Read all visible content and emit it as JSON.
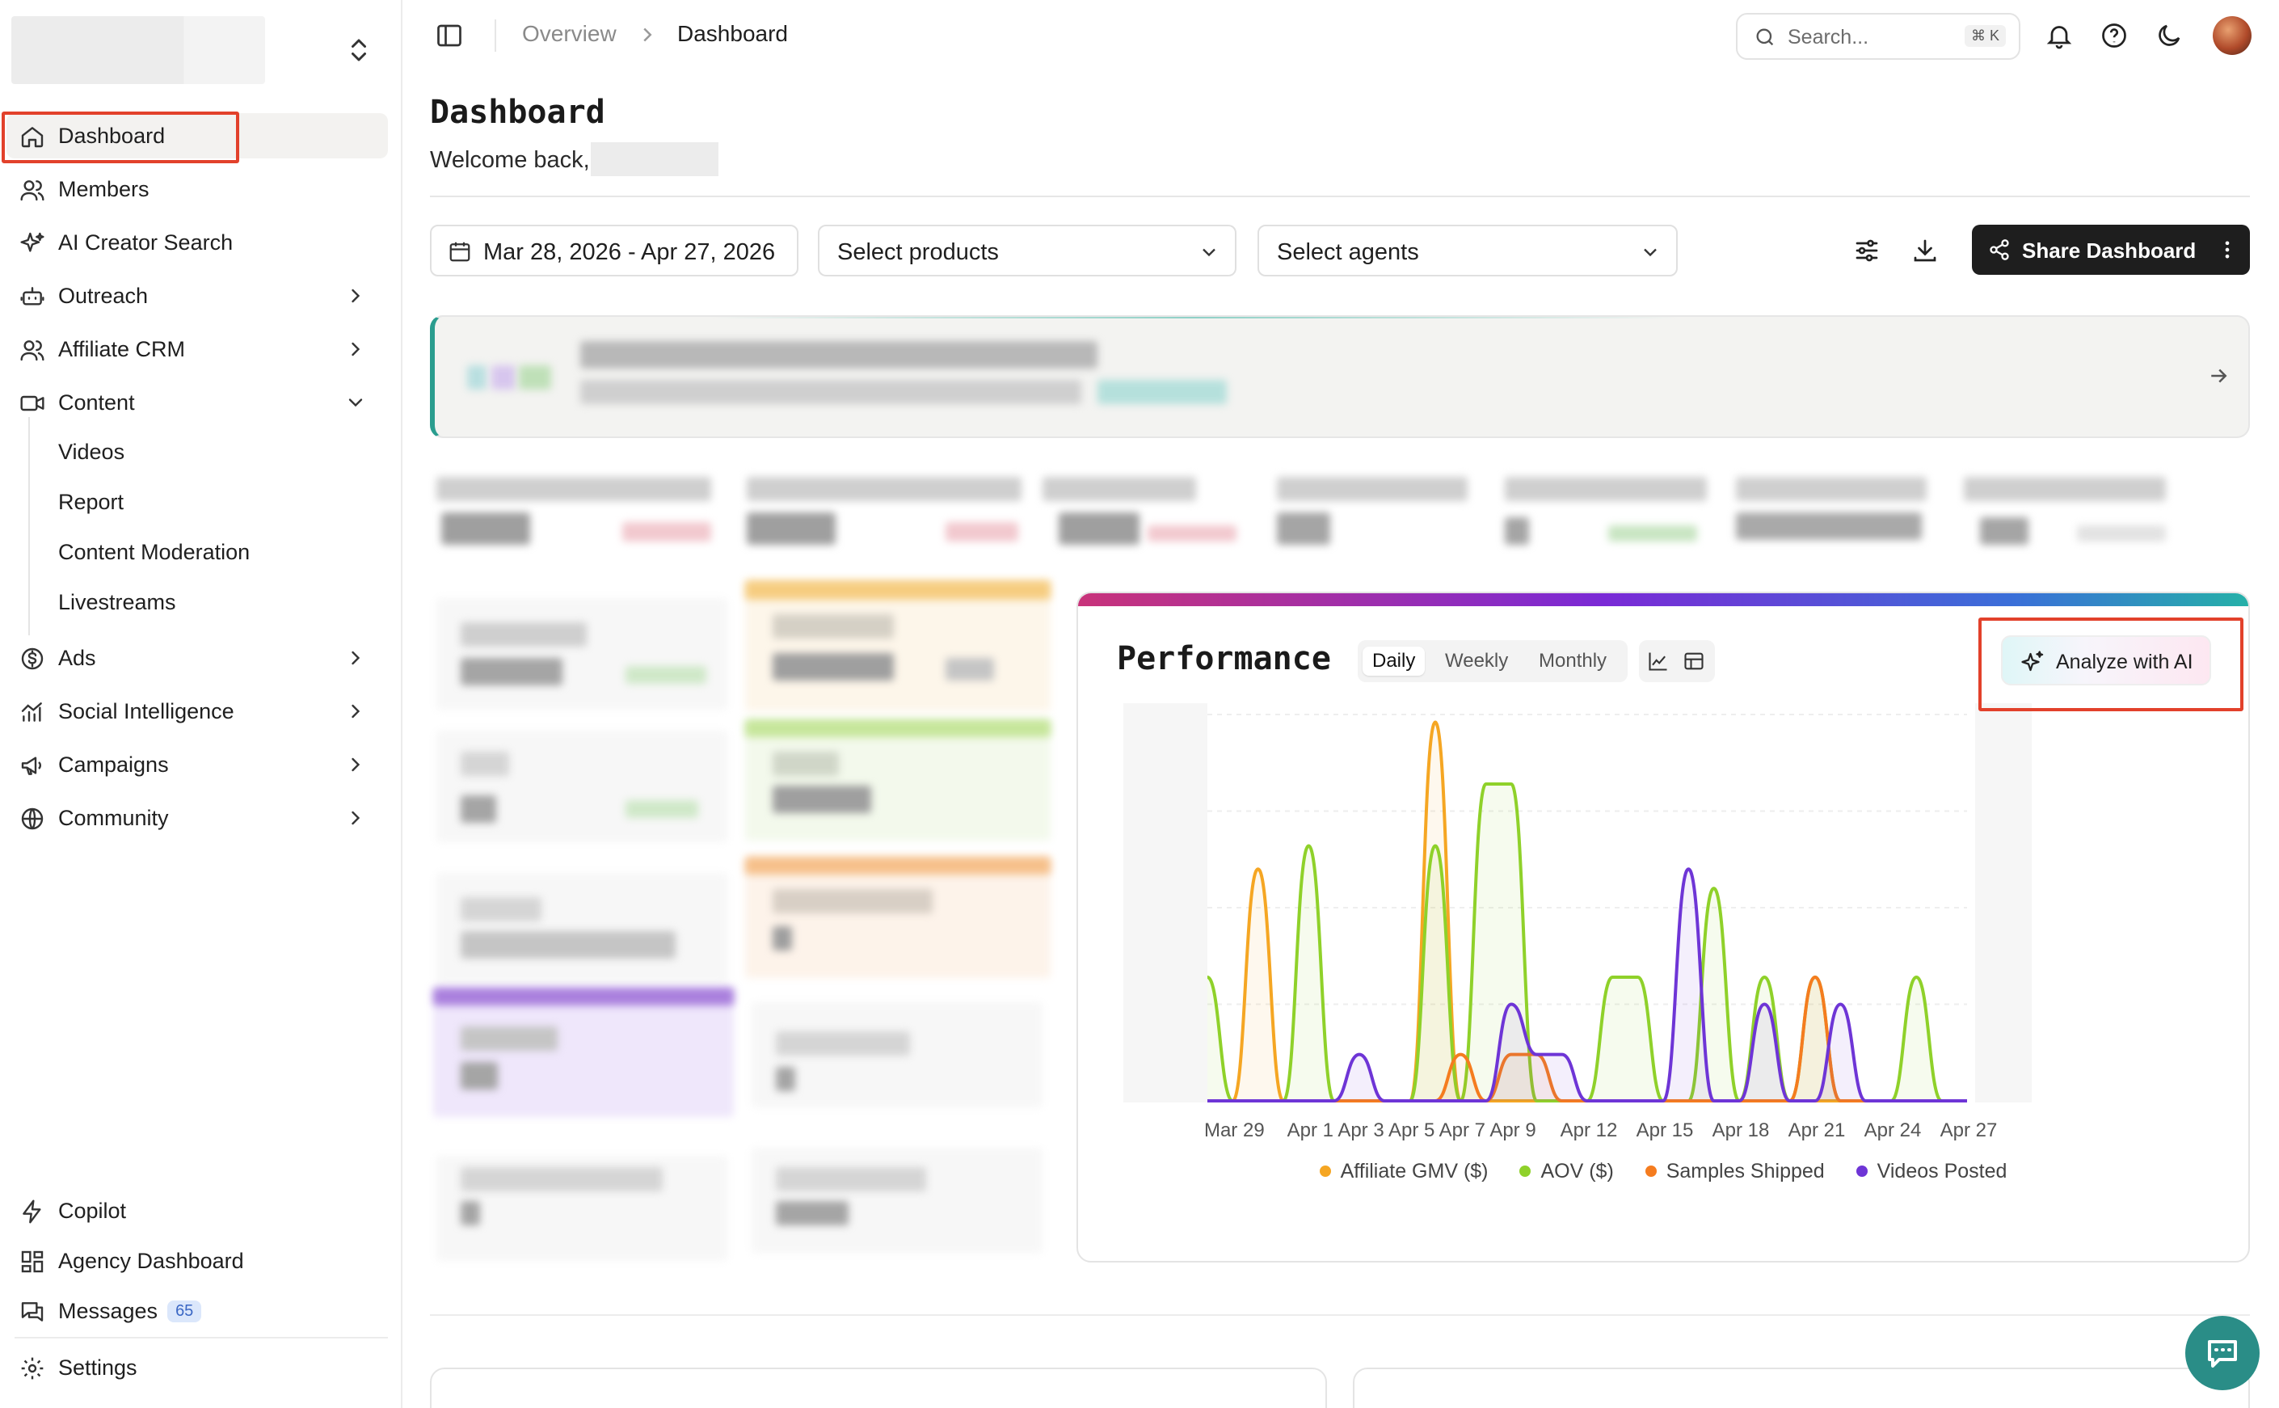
{
  "sidebar": {
    "items": [
      {
        "label": "Dashboard",
        "icon": "home-icon"
      },
      {
        "label": "Members",
        "icon": "users-icon"
      },
      {
        "label": "AI Creator Search",
        "icon": "sparkles-icon"
      },
      {
        "label": "Outreach",
        "icon": "robot-icon"
      },
      {
        "label": "Affiliate CRM",
        "icon": "users-icon"
      },
      {
        "label": "Content",
        "icon": "video-icon"
      },
      {
        "label": "Ads",
        "icon": "dollar-icon"
      },
      {
        "label": "Social Intelligence",
        "icon": "chart-icon"
      },
      {
        "label": "Campaigns",
        "icon": "megaphone-icon"
      },
      {
        "label": "Community",
        "icon": "globe-icon"
      }
    ],
    "content_sub": [
      "Videos",
      "Report",
      "Content Moderation",
      "Livestreams"
    ],
    "bottom": [
      {
        "label": "Copilot",
        "icon": "bolt-icon"
      },
      {
        "label": "Agency Dashboard",
        "icon": "grid-icon"
      },
      {
        "label": "Messages",
        "icon": "messages-icon",
        "badge": "65"
      },
      {
        "label": "Settings",
        "icon": "gear-icon"
      }
    ]
  },
  "topbar": {
    "breadcrumb": [
      "Overview",
      "Dashboard"
    ],
    "search_placeholder": "Search...",
    "search_shortcut": "⌘ K"
  },
  "main": {
    "title": "Dashboard",
    "welcome": "Welcome back,",
    "date_range": "Mar 28, 2026 - Apr 27, 2026",
    "products_placeholder": "Select products",
    "agents_placeholder": "Select agents",
    "share_label": "Share Dashboard"
  },
  "performance": {
    "title": "Performance",
    "tabs": [
      "Daily",
      "Weekly",
      "Monthly"
    ],
    "active_tab": "Daily",
    "ai_button": "Analyze with AI"
  },
  "colors": {
    "gmv": "#f5a623",
    "aov": "#8fd12a",
    "samples": "#f57c1f",
    "videos": "#6e35d6",
    "accent": "#e2412b"
  },
  "chart_data": {
    "type": "line",
    "x": [
      "Mar 28",
      "Mar 29",
      "Mar 30",
      "Mar 31",
      "Apr 1",
      "Apr 2",
      "Apr 3",
      "Apr 4",
      "Apr 5",
      "Apr 6",
      "Apr 7",
      "Apr 8",
      "Apr 9",
      "Apr 10",
      "Apr 11",
      "Apr 12",
      "Apr 13",
      "Apr 14",
      "Apr 15",
      "Apr 16",
      "Apr 17",
      "Apr 18",
      "Apr 19",
      "Apr 20",
      "Apr 21",
      "Apr 22",
      "Apr 23",
      "Apr 24",
      "Apr 25",
      "Apr 26",
      "Apr 27"
    ],
    "x_tick_labels": [
      "Mar 29",
      "Apr 1",
      "Apr 3",
      "Apr 5",
      "Apr 7",
      "Apr 9",
      "Apr 12",
      "Apr 15",
      "Apr 18",
      "Apr 21",
      "Apr 24",
      "Apr 27"
    ],
    "ylim": [
      0,
      1
    ],
    "grid": true,
    "legend": "bottom",
    "series": [
      {
        "name": "Affiliate GMV ($)",
        "values": [
          0,
          0,
          0.6,
          0,
          0,
          0,
          0,
          0,
          0,
          0.98,
          0,
          0,
          0,
          0,
          0,
          0,
          0,
          0,
          0,
          0,
          0,
          0,
          0,
          0,
          0,
          0,
          0,
          0,
          0,
          0,
          0
        ]
      },
      {
        "name": "AOV ($)",
        "values": [
          0.32,
          0,
          0,
          0,
          0.66,
          0,
          0,
          0,
          0,
          0.66,
          0,
          0.82,
          0.82,
          0,
          0,
          0,
          0.32,
          0.32,
          0,
          0,
          0.55,
          0,
          0.32,
          0,
          0.32,
          0,
          0,
          0,
          0.32,
          0,
          0
        ]
      },
      {
        "name": "Samples Shipped",
        "values": [
          0,
          0,
          0,
          0,
          0,
          0,
          0,
          0,
          0,
          0,
          0.12,
          0,
          0.12,
          0.12,
          0,
          0,
          0,
          0,
          0,
          0,
          0,
          0,
          0,
          0,
          0.32,
          0,
          0,
          0,
          0,
          0,
          0
        ]
      },
      {
        "name": "Videos Posted",
        "values": [
          0,
          0,
          0,
          0,
          0,
          0,
          0.12,
          0,
          0,
          0,
          0,
          0,
          0.25,
          0.12,
          0.12,
          0,
          0,
          0,
          0,
          0.6,
          0,
          0,
          0.25,
          0,
          0,
          0.25,
          0,
          0,
          0,
          0,
          0
        ]
      }
    ]
  }
}
